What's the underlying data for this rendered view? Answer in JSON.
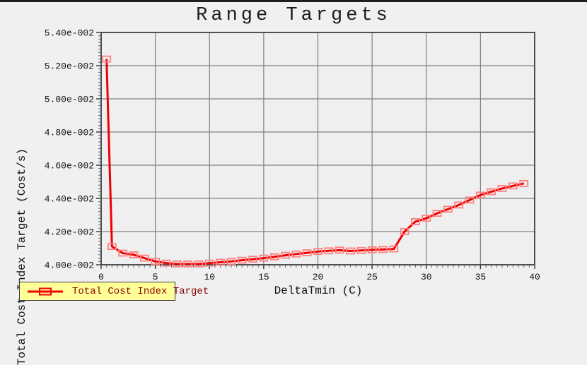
{
  "window": {
    "top_border_color": "#1e1e1e",
    "background": "#f0f0f0"
  },
  "colors": {
    "plot_background": "#efefef",
    "grid": "#808080",
    "axis_border": "#3f3f3f",
    "major_tick": "#333333",
    "minor_tick": "#5a6b7d",
    "tick_label_text": "#111111",
    "series_line": "#f20000",
    "series_marker": "#ff8080",
    "legend_background": "#ffff99",
    "legend_border": "#3c3c3c",
    "legend_text": "#8b0000",
    "title_text": "#1c1c1c"
  },
  "chart_data": {
    "type": "line",
    "title": "Range Targets",
    "xlabel": "DeltaTmin (C)",
    "ylabel": "Total Cost Index Target (Cost/s)",
    "xlim": [
      0,
      40
    ],
    "ylim": [
      0.04,
      0.054
    ],
    "grid": true,
    "x_ticks": [
      0,
      5,
      10,
      15,
      20,
      25,
      30,
      35,
      40
    ],
    "x_tick_labels": [
      "0",
      "5",
      "10",
      "15",
      "20",
      "25",
      "30",
      "35",
      "40"
    ],
    "x_minor_step": 0.5,
    "y_ticks": [
      0.04,
      0.042,
      0.044,
      0.046,
      0.048,
      0.05,
      0.052,
      0.054
    ],
    "y_tick_labels": [
      "4.00e-002",
      "4.20e-002",
      "4.40e-002",
      "4.60e-002",
      "4.80e-002",
      "5.00e-002",
      "5.20e-002",
      "5.40e-002"
    ],
    "y_minor_step": 0.0002,
    "legend_position": "bottom-left",
    "series": [
      {
        "name": "Total Cost Index Target",
        "marker": "open-square",
        "x": [
          0.5,
          1,
          2,
          3,
          4,
          5,
          6,
          7,
          8,
          9,
          10,
          11,
          12,
          13,
          14,
          15,
          16,
          17,
          18,
          19,
          20,
          21,
          22,
          23,
          24,
          25,
          26,
          27,
          28,
          29,
          30,
          31,
          32,
          33,
          34,
          35,
          36,
          37,
          38,
          39
        ],
        "y": [
          0.0524,
          0.0411,
          0.0407,
          0.0406,
          0.0404,
          0.0402,
          0.0401,
          0.04005,
          0.04005,
          0.04005,
          0.0401,
          0.04015,
          0.0402,
          0.04027,
          0.04033,
          0.0404,
          0.04048,
          0.04057,
          0.04065,
          0.04072,
          0.0408,
          0.04084,
          0.04088,
          0.04083,
          0.04086,
          0.0409,
          0.04092,
          0.04095,
          0.042,
          0.0426,
          0.0428,
          0.0431,
          0.04335,
          0.0436,
          0.0439,
          0.0442,
          0.0444,
          0.0446,
          0.04475,
          0.0449
        ]
      }
    ]
  }
}
